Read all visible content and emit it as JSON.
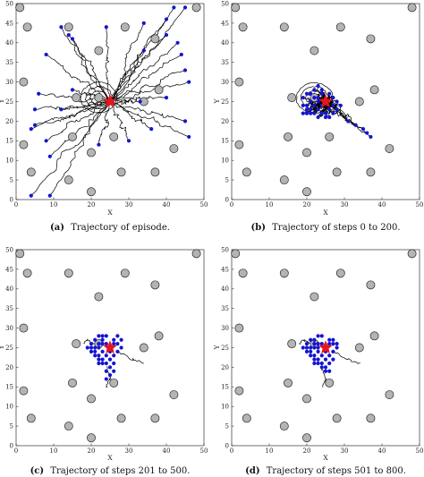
{
  "chart_data": [
    {
      "type": "scatter",
      "panel": "a",
      "caption_tag": "(a)",
      "caption": "Trajectory of episode.",
      "xlabel": "X",
      "ylabel": "Y",
      "xlim": [
        0,
        50
      ],
      "ylim": [
        0,
        50
      ],
      "xticks": [
        0,
        10,
        20,
        30,
        40,
        50
      ],
      "yticks": [
        0,
        5,
        10,
        15,
        20,
        25,
        30,
        35,
        40,
        45,
        50
      ],
      "trajectories": true,
      "agents": [
        [
          9,
          1
        ],
        [
          4,
          1
        ],
        [
          14,
          42
        ],
        [
          12,
          44
        ],
        [
          15,
          41
        ],
        [
          34,
          45
        ],
        [
          40,
          46
        ],
        [
          42,
          49
        ],
        [
          45,
          49
        ],
        [
          40,
          42
        ],
        [
          43,
          40
        ],
        [
          44,
          37
        ],
        [
          34,
          38
        ],
        [
          45,
          33
        ],
        [
          46,
          30
        ],
        [
          40,
          26
        ],
        [
          33,
          25
        ],
        [
          45,
          20
        ],
        [
          46,
          16
        ],
        [
          36,
          18
        ],
        [
          30,
          15
        ],
        [
          22,
          14
        ],
        [
          9,
          11
        ],
        [
          8,
          15
        ],
        [
          4,
          18
        ],
        [
          5,
          19
        ],
        [
          5,
          23
        ],
        [
          12,
          23
        ],
        [
          6,
          27
        ],
        [
          15,
          28
        ],
        [
          24,
          44
        ],
        [
          8,
          37
        ]
      ],
      "goal": [
        25,
        25
      ],
      "obstacles": [
        [
          1,
          49
        ],
        [
          48,
          49
        ],
        [
          3,
          44
        ],
        [
          14,
          44
        ],
        [
          29,
          44
        ],
        [
          37,
          41
        ],
        [
          22,
          38
        ],
        [
          2,
          30
        ],
        [
          16,
          26
        ],
        [
          22,
          26
        ],
        [
          34,
          25
        ],
        [
          38,
          28
        ],
        [
          2,
          14
        ],
        [
          15,
          16
        ],
        [
          20,
          12
        ],
        [
          26,
          16
        ],
        [
          14,
          5
        ],
        [
          4,
          7
        ],
        [
          28,
          7
        ],
        [
          37,
          7
        ],
        [
          20,
          2
        ],
        [
          42,
          13
        ]
      ],
      "colors": {
        "obstacle": "#b4b4b4",
        "agent": "#1414d2",
        "goal": "#e8141e",
        "path": "#000000"
      }
    },
    {
      "type": "scatter",
      "panel": "b",
      "caption_tag": "(b)",
      "caption": "Trajectory of steps 0 to 200.",
      "xlabel": "X",
      "ylabel": "Y",
      "xlim": [
        0,
        50
      ],
      "ylim": [
        0,
        50
      ],
      "xticks": [
        0,
        10,
        20,
        30,
        40,
        50
      ],
      "yticks": [
        0,
        5,
        10,
        15,
        20,
        25,
        30,
        35,
        40,
        45,
        50
      ],
      "trajectories": true,
      "agents": [
        [
          21,
          23
        ],
        [
          22,
          24
        ],
        [
          23,
          26
        ],
        [
          24,
          27
        ],
        [
          22,
          26
        ],
        [
          21,
          25
        ],
        [
          20,
          24
        ],
        [
          19,
          24
        ],
        [
          23,
          23
        ],
        [
          24,
          22
        ],
        [
          25,
          22
        ],
        [
          26,
          23
        ],
        [
          27,
          24
        ],
        [
          27,
          26
        ],
        [
          26,
          27
        ],
        [
          24,
          28
        ],
        [
          22,
          28
        ],
        [
          20,
          27
        ],
        [
          20,
          23
        ],
        [
          21,
          22
        ],
        [
          23,
          21
        ],
        [
          25,
          21
        ],
        [
          26,
          21
        ],
        [
          28,
          25
        ],
        [
          29,
          24
        ],
        [
          23,
          29
        ],
        [
          21,
          27
        ],
        [
          19,
          26
        ],
        [
          27,
          22
        ],
        [
          28,
          23
        ],
        [
          24,
          24
        ],
        [
          23,
          25
        ],
        [
          31,
          20
        ],
        [
          33,
          19
        ],
        [
          35,
          18
        ],
        [
          36,
          17
        ],
        [
          37,
          16
        ],
        [
          22,
          22
        ],
        [
          20,
          22
        ],
        [
          19,
          22
        ]
      ],
      "goal": [
        25,
        25
      ],
      "obstacles": [
        [
          1,
          49
        ],
        [
          48,
          49
        ],
        [
          3,
          44
        ],
        [
          14,
          44
        ],
        [
          29,
          44
        ],
        [
          37,
          41
        ],
        [
          22,
          38
        ],
        [
          2,
          30
        ],
        [
          16,
          26
        ],
        [
          22,
          26
        ],
        [
          34,
          25
        ],
        [
          38,
          28
        ],
        [
          2,
          14
        ],
        [
          15,
          16
        ],
        [
          20,
          12
        ],
        [
          26,
          16
        ],
        [
          14,
          5
        ],
        [
          4,
          7
        ],
        [
          28,
          7
        ],
        [
          37,
          7
        ],
        [
          20,
          2
        ],
        [
          42,
          13
        ]
      ],
      "colors": {
        "obstacle": "#b4b4b4",
        "agent": "#1414d2",
        "goal": "#e8141e",
        "path": "#000000"
      }
    },
    {
      "type": "scatter",
      "panel": "c",
      "caption_tag": "(c)",
      "caption": "Trajectory of steps 201 to 500.",
      "xlabel": "X",
      "ylabel": "Y",
      "xlim": [
        0,
        50
      ],
      "ylim": [
        0,
        50
      ],
      "xticks": [
        0,
        10,
        20,
        30,
        40,
        50
      ],
      "yticks": [
        0,
        5,
        10,
        15,
        20,
        25,
        30,
        35,
        40,
        45,
        50
      ],
      "trajectories": "short",
      "agents": [
        [
          20,
          26
        ],
        [
          21,
          27
        ],
        [
          22,
          28
        ],
        [
          23,
          28
        ],
        [
          24,
          28
        ],
        [
          20,
          25
        ],
        [
          21,
          25
        ],
        [
          22,
          26
        ],
        [
          23,
          27
        ],
        [
          19,
          25
        ],
        [
          20,
          24
        ],
        [
          21,
          24
        ],
        [
          22,
          25
        ],
        [
          23,
          26
        ],
        [
          21,
          23
        ],
        [
          22,
          23
        ],
        [
          23,
          24
        ],
        [
          22,
          22
        ],
        [
          23,
          22
        ],
        [
          24,
          23
        ],
        [
          23,
          21
        ],
        [
          24,
          21
        ],
        [
          25,
          22
        ],
        [
          26,
          27
        ],
        [
          27,
          28
        ],
        [
          26,
          26
        ],
        [
          27,
          26
        ],
        [
          28,
          27
        ],
        [
          28,
          25
        ],
        [
          27,
          24
        ],
        [
          26,
          23
        ],
        [
          26,
          21
        ],
        [
          25,
          20
        ],
        [
          24,
          19
        ],
        [
          25,
          18
        ],
        [
          24,
          17
        ],
        [
          26,
          19
        ],
        [
          25,
          24
        ],
        [
          24,
          26
        ],
        [
          22,
          21
        ]
      ],
      "goal": [
        25,
        25
      ],
      "obstacles": [
        [
          1,
          49
        ],
        [
          48,
          49
        ],
        [
          3,
          44
        ],
        [
          14,
          44
        ],
        [
          29,
          44
        ],
        [
          37,
          41
        ],
        [
          22,
          38
        ],
        [
          2,
          30
        ],
        [
          16,
          26
        ],
        [
          22,
          26
        ],
        [
          34,
          25
        ],
        [
          38,
          28
        ],
        [
          2,
          14
        ],
        [
          15,
          16
        ],
        [
          20,
          12
        ],
        [
          26,
          16
        ],
        [
          14,
          5
        ],
        [
          4,
          7
        ],
        [
          28,
          7
        ],
        [
          37,
          7
        ],
        [
          20,
          2
        ],
        [
          42,
          13
        ]
      ],
      "colors": {
        "obstacle": "#b4b4b4",
        "agent": "#1414d2",
        "goal": "#e8141e",
        "path": "#000000"
      }
    },
    {
      "type": "scatter",
      "panel": "d",
      "caption_tag": "(d)",
      "caption": "Trajectory of steps 501 to 800.",
      "xlabel": "X",
      "ylabel": "Y",
      "xlim": [
        0,
        50
      ],
      "ylim": [
        0,
        50
      ],
      "xticks": [
        0,
        10,
        20,
        30,
        40,
        50
      ],
      "yticks": [
        0,
        5,
        10,
        15,
        20,
        25,
        30,
        35,
        40,
        45,
        50
      ],
      "trajectories": "short",
      "agents": [
        [
          20,
          26
        ],
        [
          21,
          27
        ],
        [
          22,
          27
        ],
        [
          23,
          28
        ],
        [
          24,
          28
        ],
        [
          20,
          25
        ],
        [
          21,
          25
        ],
        [
          22,
          26
        ],
        [
          23,
          26
        ],
        [
          19,
          25
        ],
        [
          20,
          24
        ],
        [
          21,
          24
        ],
        [
          22,
          25
        ],
        [
          23,
          25
        ],
        [
          21,
          23
        ],
        [
          22,
          23
        ],
        [
          23,
          24
        ],
        [
          22,
          22
        ],
        [
          23,
          22
        ],
        [
          24,
          23
        ],
        [
          23,
          21
        ],
        [
          24,
          21
        ],
        [
          25,
          22
        ],
        [
          26,
          27
        ],
        [
          27,
          27
        ],
        [
          26,
          26
        ],
        [
          27,
          26
        ],
        [
          28,
          26
        ],
        [
          28,
          25
        ],
        [
          27,
          24
        ],
        [
          26,
          23
        ],
        [
          26,
          21
        ],
        [
          25,
          20
        ],
        [
          24,
          20
        ],
        [
          26,
          19
        ],
        [
          25,
          19
        ],
        [
          27,
          22
        ],
        [
          25,
          24
        ],
        [
          24,
          26
        ],
        [
          22,
          21
        ]
      ],
      "goal": [
        25,
        25
      ],
      "obstacles": [
        [
          1,
          49
        ],
        [
          48,
          49
        ],
        [
          3,
          44
        ],
        [
          14,
          44
        ],
        [
          29,
          44
        ],
        [
          37,
          41
        ],
        [
          22,
          38
        ],
        [
          2,
          30
        ],
        [
          16,
          26
        ],
        [
          22,
          26
        ],
        [
          34,
          25
        ],
        [
          38,
          28
        ],
        [
          2,
          14
        ],
        [
          15,
          16
        ],
        [
          20,
          12
        ],
        [
          26,
          16
        ],
        [
          14,
          5
        ],
        [
          4,
          7
        ],
        [
          28,
          7
        ],
        [
          37,
          7
        ],
        [
          20,
          2
        ],
        [
          42,
          13
        ]
      ],
      "colors": {
        "obstacle": "#b4b4b4",
        "agent": "#1414d2",
        "goal": "#e8141e",
        "path": "#000000"
      }
    }
  ]
}
